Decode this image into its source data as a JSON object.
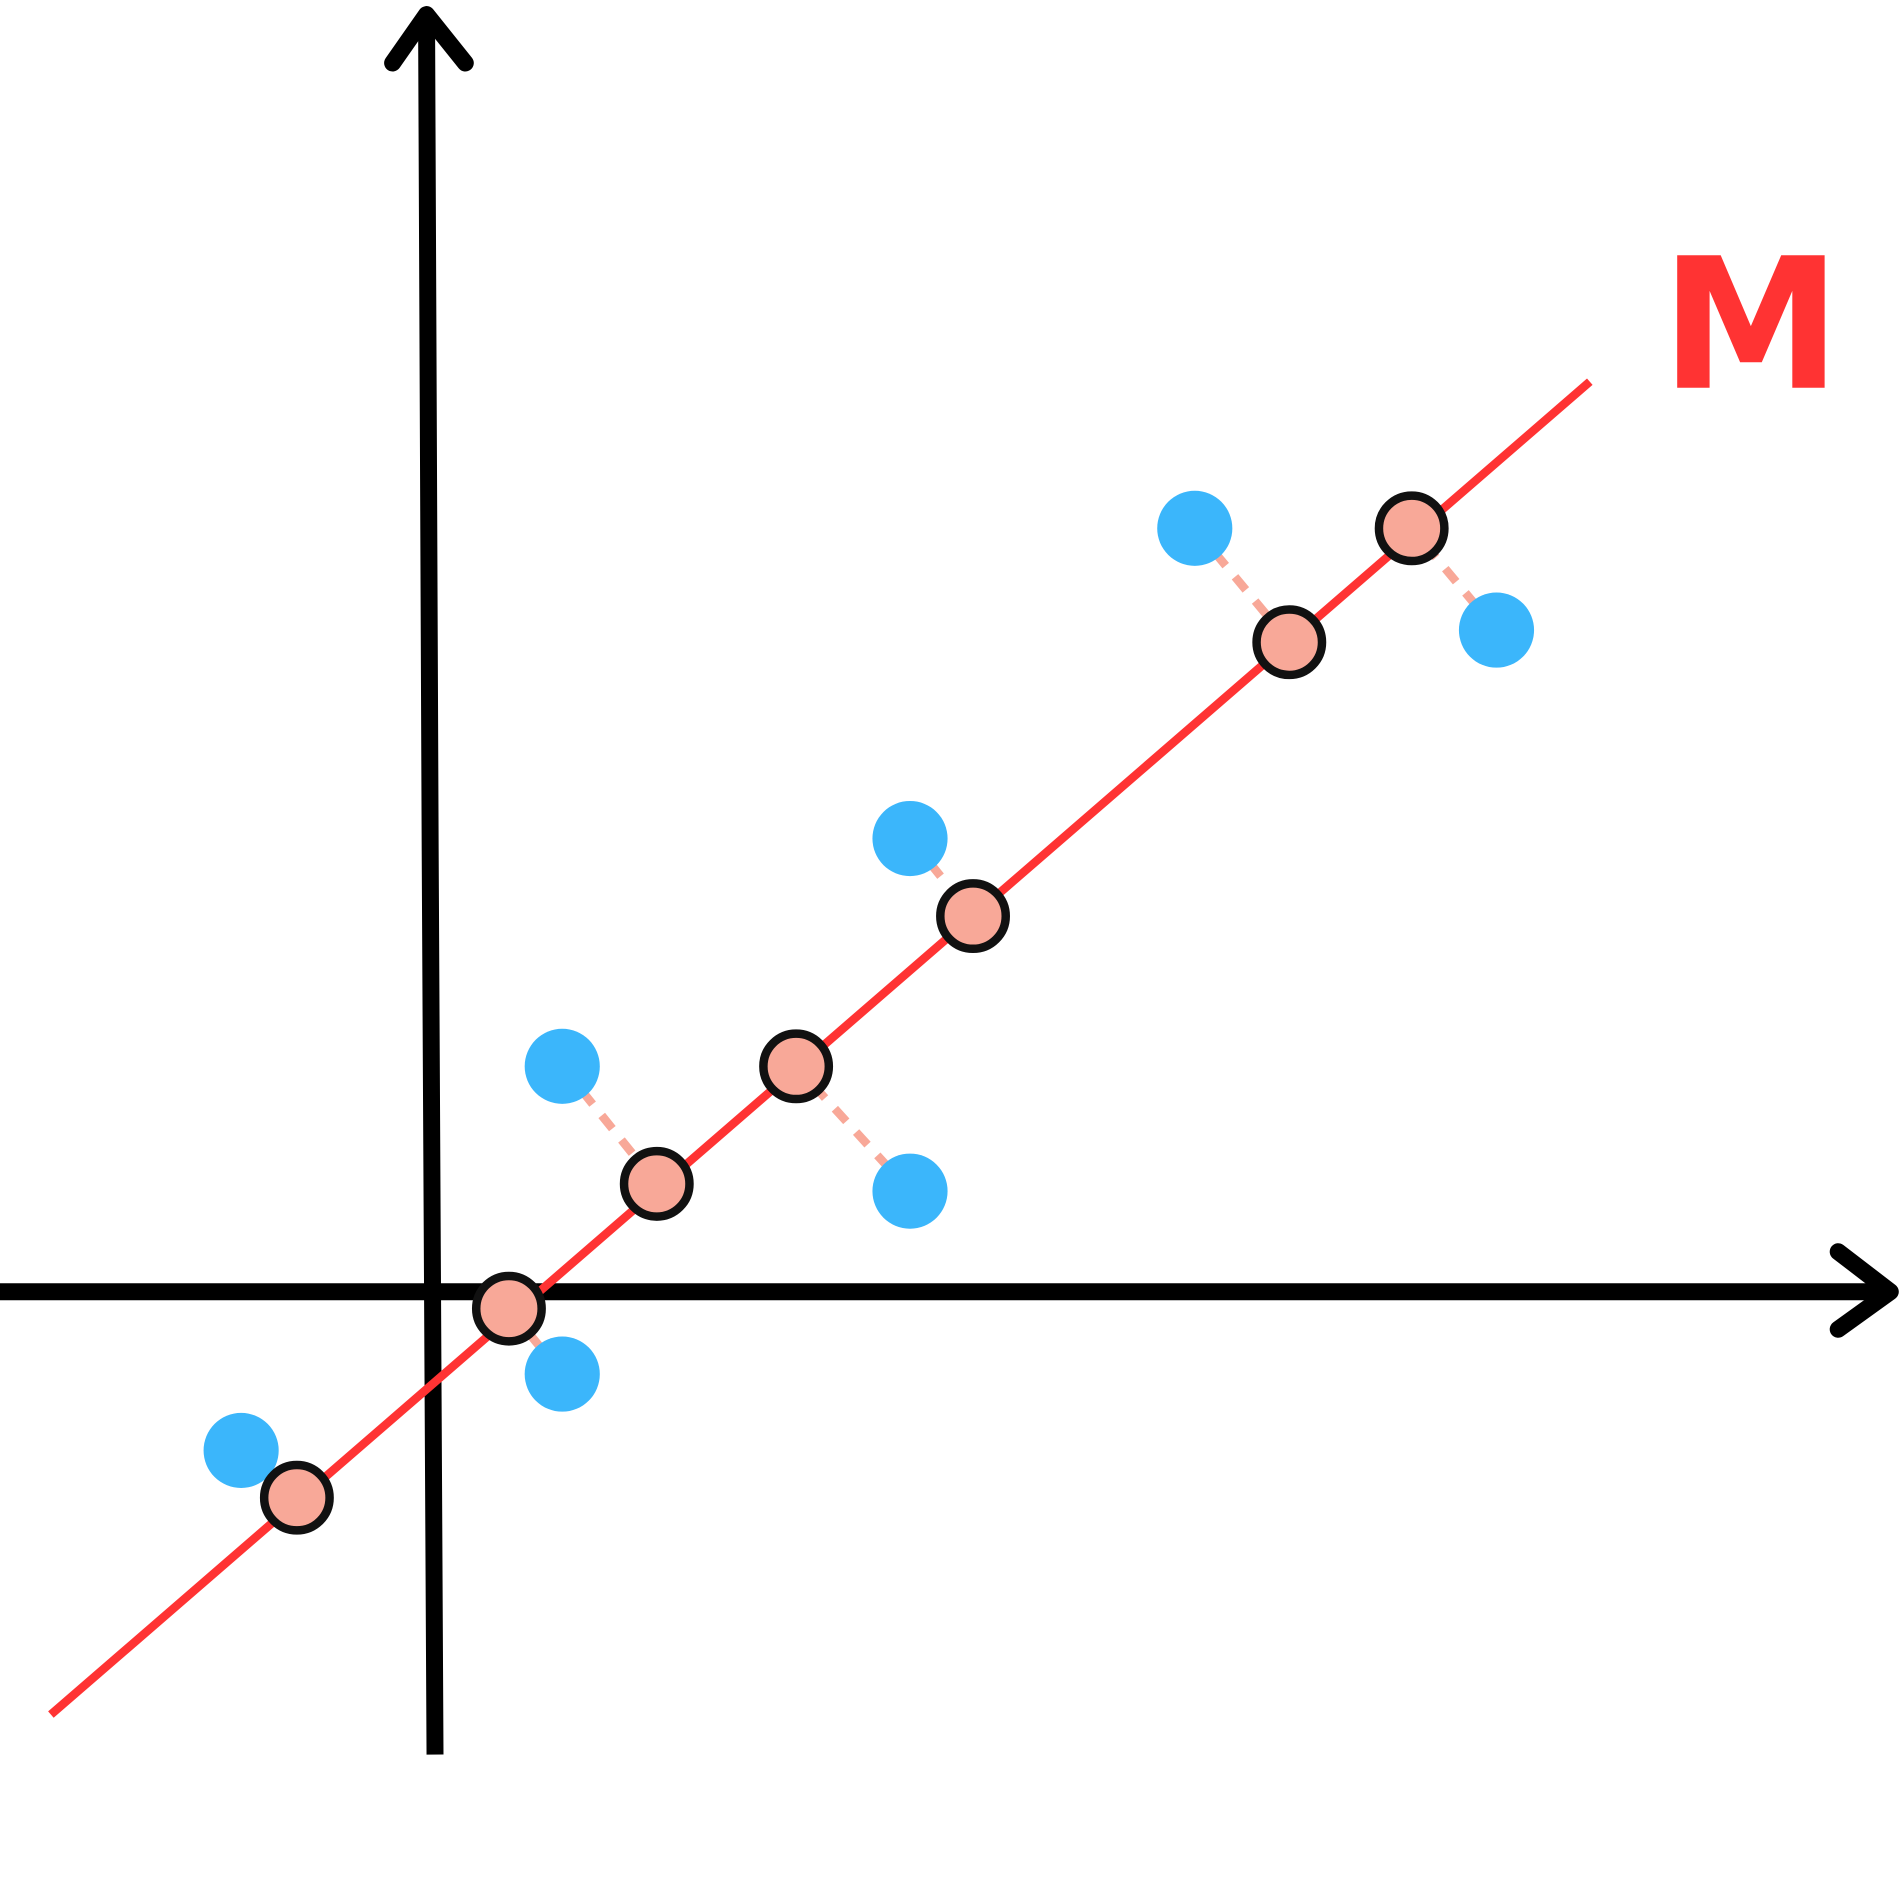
{
  "label": "M"
}
